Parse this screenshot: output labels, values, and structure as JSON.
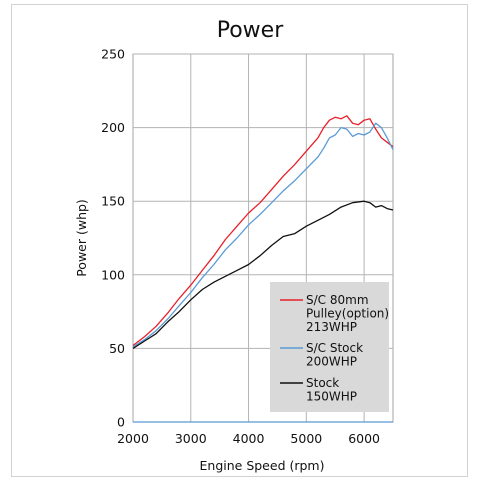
{
  "chart_data": {
    "type": "line",
    "title": "Power",
    "xlabel": "Engine Speed (rpm)",
    "ylabel": "Power (whp)",
    "xlim": [
      2000,
      6500
    ],
    "ylim": [
      0,
      250
    ],
    "xticks": [
      2000,
      3000,
      4000,
      5000,
      6000
    ],
    "yticks": [
      0,
      50,
      100,
      150,
      200,
      250
    ],
    "grid": true,
    "legend_position": "bottom-right",
    "series": [
      {
        "name": "S/C 80mm Pulley(option) 213WHP",
        "label_lines": [
          "S/C 80mm",
          "Pulley(option)",
          "213WHP"
        ],
        "color": "#e8202a",
        "x": [
          2000,
          2200,
          2400,
          2600,
          2800,
          3000,
          3200,
          3400,
          3600,
          3800,
          4000,
          4200,
          4400,
          4600,
          4800,
          5000,
          5200,
          5300,
          5400,
          5500,
          5600,
          5700,
          5800,
          5900,
          6000,
          6100,
          6200,
          6300,
          6400,
          6500
        ],
        "y": [
          52,
          58,
          65,
          74,
          84,
          93,
          103,
          113,
          124,
          133,
          142,
          149,
          158,
          167,
          175,
          184,
          193,
          200,
          205,
          207,
          206,
          208,
          203,
          202,
          205,
          206,
          199,
          193,
          190,
          187
        ]
      },
      {
        "name": "S/C Stock 200WHP",
        "label_lines": [
          "S/C Stock",
          "200WHP"
        ],
        "color": "#5b9bd5",
        "x": [
          2000,
          2200,
          2400,
          2600,
          2800,
          3000,
          3200,
          3400,
          3600,
          3800,
          4000,
          4200,
          4400,
          4600,
          4800,
          5000,
          5200,
          5300,
          5400,
          5500,
          5600,
          5700,
          5800,
          5900,
          6000,
          6100,
          6200,
          6300,
          6400,
          6500
        ],
        "y": [
          51,
          56,
          62,
          70,
          79,
          88,
          98,
          107,
          117,
          125,
          134,
          141,
          149,
          157,
          164,
          172,
          180,
          186,
          193,
          195,
          200,
          199,
          194,
          196,
          195,
          197,
          203,
          200,
          193,
          185
        ]
      },
      {
        "name": "Stock 150WHP",
        "label_lines": [
          "Stock",
          "150WHP"
        ],
        "color": "#111111",
        "x": [
          2000,
          2200,
          2400,
          2600,
          2800,
          3000,
          3200,
          3400,
          3600,
          3800,
          4000,
          4200,
          4400,
          4600,
          4800,
          5000,
          5200,
          5400,
          5600,
          5800,
          6000,
          6100,
          6200,
          6300,
          6400,
          6500
        ],
        "y": [
          50,
          55,
          60,
          68,
          75,
          83,
          90,
          95,
          99,
          103,
          107,
          113,
          120,
          126,
          128,
          133,
          137,
          141,
          146,
          149,
          150,
          149,
          146,
          147,
          145,
          144
        ]
      }
    ]
  }
}
